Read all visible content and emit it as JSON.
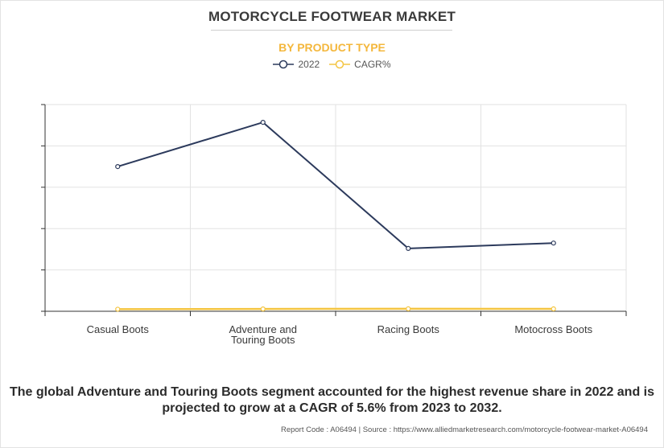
{
  "header": {
    "title": "MOTORCYCLE FOOTWEAR MARKET",
    "subtitle": "BY PRODUCT TYPE"
  },
  "colors": {
    "series_2022": "#2c3a5c",
    "series_cagr": "#f4c542",
    "subtitle": "#f4b73c"
  },
  "chart_data": {
    "type": "line",
    "categories": [
      "Casual Boots",
      "Adventure and Touring Boots",
      "Racing Boots",
      "Motocross Boots"
    ],
    "category_label_lines": [
      [
        "Casual Boots"
      ],
      [
        "Adventure and",
        "Touring Boots"
      ],
      [
        "Racing Boots"
      ],
      [
        "Motocross Boots"
      ]
    ],
    "series": [
      {
        "name": "2022",
        "values": [
          3.5,
          4.57,
          1.52,
          1.65
        ]
      },
      {
        "name": "CAGR%",
        "values": [
          0.05,
          0.056,
          0.06,
          0.058
        ]
      }
    ],
    "ylim": [
      0,
      5
    ],
    "y_ticks": 6,
    "y_tick_labels_shown": false,
    "grid": true,
    "legend_position": "top-center"
  },
  "footer": {
    "summary": "The global Adventure and Touring Boots segment accounted for the highest revenue share in 2022 and is projected to grow at a CAGR of 5.6% from 2023 to 2032.",
    "source": "Report Code : A06494  |  Source : https://www.alliedmarketresearch.com/motorcycle-footwear-market-A06494"
  }
}
